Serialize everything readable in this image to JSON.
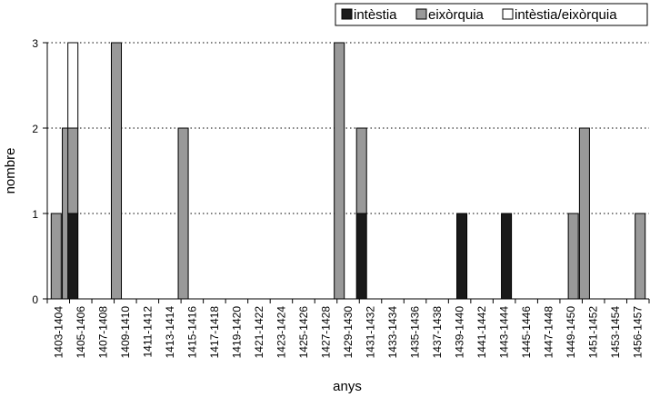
{
  "chart_data": {
    "type": "bar",
    "stacked": true,
    "xlabel": "anys",
    "ylabel": "nombre",
    "ylim": [
      0,
      3
    ],
    "yticks": [
      0,
      1,
      2,
      3
    ],
    "grid": "horizontal dotted",
    "legend_position": "top-right",
    "categories": [
      "1403-1404",
      "1405-1406",
      "1407-1408",
      "1409-1410",
      "1411-1412",
      "1413-1414",
      "1415-1416",
      "1417-1418",
      "1419-1420",
      "1421-1422",
      "1423-1424",
      "1425-1426",
      "1427-1428",
      "1429-1430",
      "1431-1432",
      "1433-1434",
      "1435-1436",
      "1437-1438",
      "1439-1440",
      "1441-1442",
      "1443-1444",
      "1445-1446",
      "1447-1448",
      "1449-1450",
      "1451-1452",
      "1453-1454",
      "1456-1457"
    ],
    "bars": [
      {
        "position": 0.4,
        "intestia": 0,
        "eixorquia": 1,
        "mixt": 0
      },
      {
        "position": 0.9,
        "intestia": 0,
        "eixorquia": 2,
        "mixt": 0
      },
      {
        "position": 1.15,
        "intestia": 1,
        "eixorquia": 1,
        "mixt": 1
      },
      {
        "position": 3.1,
        "intestia": 0,
        "eixorquia": 3,
        "mixt": 0
      },
      {
        "position": 6.1,
        "intestia": 0,
        "eixorquia": 2,
        "mixt": 0
      },
      {
        "position": 13.1,
        "intestia": 0,
        "eixorquia": 3,
        "mixt": 0
      },
      {
        "position": 14.1,
        "intestia": 1,
        "eixorquia": 1,
        "mixt": 0
      },
      {
        "position": 18.6,
        "intestia": 1,
        "eixorquia": 0,
        "mixt": 0
      },
      {
        "position": 20.6,
        "intestia": 1,
        "eixorquia": 0,
        "mixt": 0
      },
      {
        "position": 23.6,
        "intestia": 0,
        "eixorquia": 1,
        "mixt": 0
      },
      {
        "position": 24.1,
        "intestia": 0,
        "eixorquia": 2,
        "mixt": 0
      },
      {
        "position": 26.6,
        "intestia": 0,
        "eixorquia": 1,
        "mixt": 0
      }
    ],
    "series": [
      {
        "key": "intestia",
        "name": "intèstia",
        "color": "#1a1a1a"
      },
      {
        "key": "eixorquia",
        "name": "eixòrquia",
        "color": "#999999"
      },
      {
        "key": "mixt",
        "name": "intèstia/eixòrquia",
        "color": "#ffffff"
      }
    ]
  }
}
